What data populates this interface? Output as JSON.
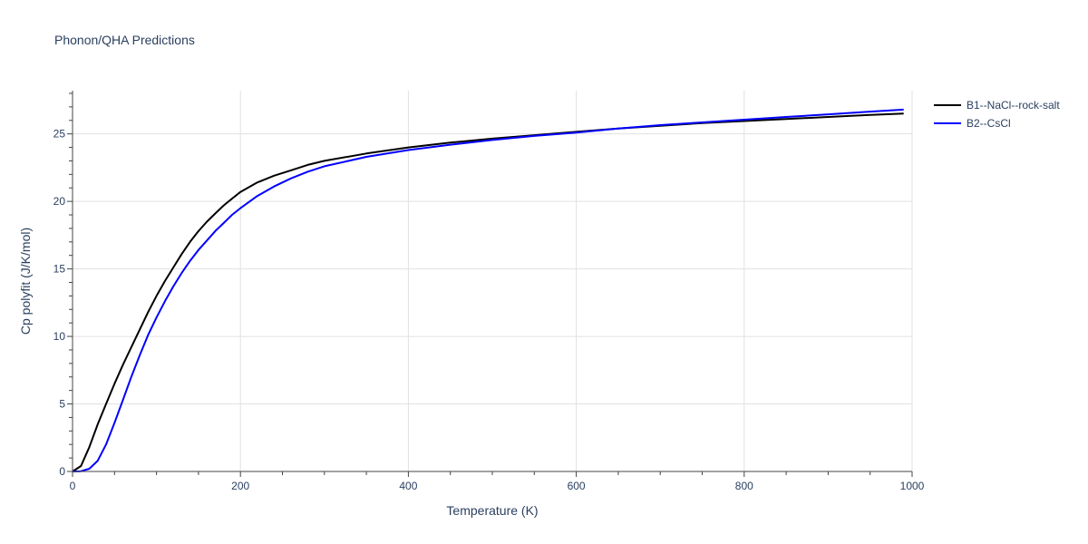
{
  "chart_data": {
    "type": "line",
    "title": "Phonon/QHA Predictions",
    "xlabel": "Temperature (K)",
    "ylabel": "Cp polyfit (J/K/mol)",
    "xlim": [
      0,
      1000
    ],
    "ylim": [
      0,
      28.2
    ],
    "x_ticks": [
      0,
      200,
      400,
      600,
      800,
      1000
    ],
    "y_ticks": [
      0,
      5,
      10,
      15,
      20,
      25
    ],
    "grid": true,
    "legend_position": "top-right",
    "series": [
      {
        "name": "B1--NaCl--rock-salt",
        "color": "#000000",
        "x": [
          0,
          10,
          20,
          30,
          40,
          50,
          60,
          70,
          80,
          90,
          100,
          110,
          120,
          130,
          140,
          150,
          160,
          170,
          180,
          190,
          200,
          220,
          240,
          260,
          280,
          300,
          350,
          400,
          450,
          500,
          550,
          600,
          650,
          700,
          750,
          800,
          850,
          900,
          950,
          990
        ],
        "y": [
          0,
          0.4,
          1.8,
          3.5,
          5.0,
          6.5,
          7.9,
          9.2,
          10.5,
          11.8,
          13.0,
          14.1,
          15.1,
          16.1,
          17.0,
          17.8,
          18.5,
          19.1,
          19.7,
          20.2,
          20.7,
          21.4,
          21.9,
          22.3,
          22.7,
          23.0,
          23.55,
          24.0,
          24.35,
          24.65,
          24.9,
          25.15,
          25.4,
          25.6,
          25.8,
          25.95,
          26.1,
          26.25,
          26.4,
          26.5
        ]
      },
      {
        "name": "B2--CsCl",
        "color": "#0000ff",
        "x": [
          0,
          10,
          20,
          30,
          40,
          50,
          60,
          70,
          80,
          90,
          100,
          110,
          120,
          130,
          140,
          150,
          160,
          170,
          180,
          190,
          200,
          220,
          240,
          260,
          280,
          300,
          350,
          400,
          450,
          500,
          550,
          600,
          650,
          700,
          750,
          800,
          850,
          900,
          950,
          990
        ],
        "y": [
          0,
          0.02,
          0.2,
          0.8,
          2.0,
          3.6,
          5.3,
          7.0,
          8.6,
          10.1,
          11.4,
          12.6,
          13.7,
          14.7,
          15.6,
          16.4,
          17.1,
          17.8,
          18.4,
          19.0,
          19.5,
          20.4,
          21.1,
          21.7,
          22.2,
          22.6,
          23.3,
          23.8,
          24.2,
          24.55,
          24.85,
          25.1,
          25.4,
          25.65,
          25.85,
          26.05,
          26.25,
          26.45,
          26.65,
          26.8
        ]
      }
    ]
  }
}
